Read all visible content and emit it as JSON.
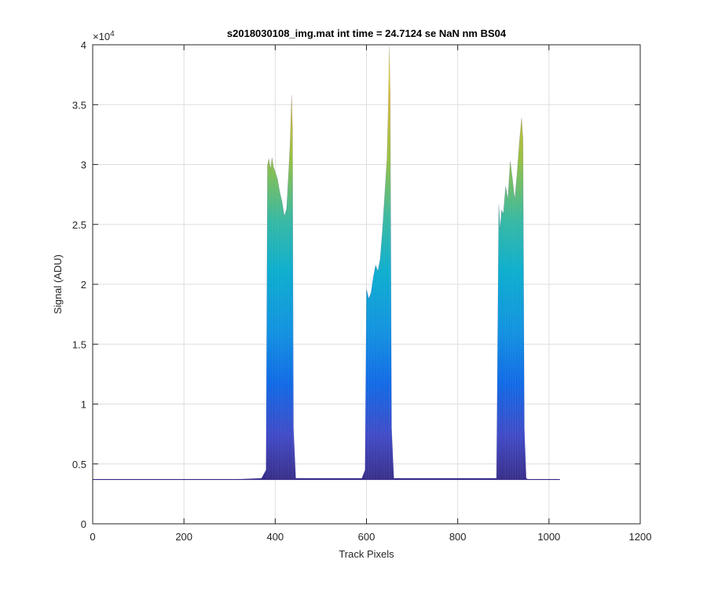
{
  "chart_data": {
    "type": "area",
    "title": "s2018030108_img.mat int time = 24.7124 se  NaN nm BS04",
    "xlabel": "Track Pixels",
    "ylabel": "Signal (ADU)",
    "y_exponent_label": "×10",
    "y_exponent_power": "4",
    "xlim": [
      0,
      1200
    ],
    "ylim": [
      0,
      40000
    ],
    "x_ticks": [
      0,
      200,
      400,
      600,
      800,
      1000,
      1200
    ],
    "x_tick_labels": [
      "0",
      "200",
      "400",
      "600",
      "800",
      "1000",
      "1200"
    ],
    "y_ticks": [
      0,
      5000,
      10000,
      15000,
      20000,
      25000,
      30000,
      35000,
      40000
    ],
    "y_tick_labels": [
      "0",
      "0.5",
      "1",
      "1.5",
      "2",
      "2.5",
      "3",
      "3.5",
      "4"
    ],
    "grid": true,
    "colormap": "parula",
    "baseline": 3700,
    "series": [
      {
        "x": [
          0,
          100,
          200,
          300,
          370,
          380,
          383,
          386,
          390,
          393,
          396,
          400,
          405,
          410,
          415,
          420,
          425,
          430,
          433,
          436,
          438,
          440,
          445,
          500,
          590,
          597,
          600,
          605,
          610,
          615,
          620,
          625,
          630,
          635,
          640,
          645,
          648,
          650,
          652,
          655,
          660,
          665,
          700,
          800,
          885,
          890,
          893,
          896,
          900,
          905,
          910,
          915,
          920,
          925,
          930,
          935,
          940,
          943,
          946,
          950,
          955,
          1000,
          1024
        ],
        "y": [
          3700,
          3700,
          3700,
          3700,
          3800,
          4500,
          29900,
          30500,
          29600,
          30600,
          29800,
          29400,
          28800,
          27700,
          26900,
          25700,
          26300,
          29800,
          32100,
          35800,
          32900,
          8000,
          3800,
          3800,
          3800,
          4500,
          19600,
          18800,
          19300,
          20600,
          21600,
          21100,
          22100,
          24500,
          27500,
          30500,
          35200,
          39900,
          36100,
          8000,
          3800,
          3800,
          3800,
          3800,
          3800,
          26700,
          24600,
          26200,
          25900,
          28200,
          27100,
          30300,
          28800,
          27100,
          29200,
          31800,
          33900,
          32100,
          8000,
          3800,
          3700,
          3700,
          3700
        ]
      }
    ]
  }
}
